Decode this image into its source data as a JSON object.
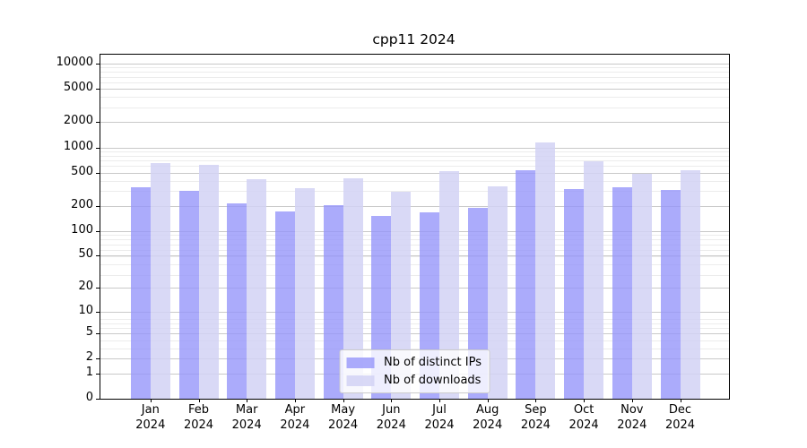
{
  "chart_data": {
    "type": "bar",
    "title": "cpp11 2024",
    "categories": [
      "Jan",
      "Feb",
      "Mar",
      "Apr",
      "May",
      "Jun",
      "Jul",
      "Aug",
      "Sep",
      "Oct",
      "Nov",
      "Dec"
    ],
    "category_year": "2024",
    "series": [
      {
        "name": "Nb of distinct IPs",
        "color": "rgba(150,150,250,0.8)",
        "values": [
          335,
          304,
          215,
          171,
          202,
          151,
          167,
          189,
          530,
          317,
          335,
          309
        ]
      },
      {
        "name": "Nb of downloads",
        "color": "rgba(210,210,245,0.85)",
        "values": [
          649,
          613,
          413,
          323,
          423,
          292,
          515,
          342,
          1150,
          677,
          486,
          537
        ]
      }
    ],
    "yscale": "log1p",
    "yticks": [
      0,
      1,
      2,
      5,
      10,
      20,
      50,
      100,
      200,
      500,
      1000,
      2000,
      5000,
      10000
    ],
    "ylim": [
      0,
      12800
    ],
    "grid": "horizontal",
    "legend_position": "lower center"
  }
}
